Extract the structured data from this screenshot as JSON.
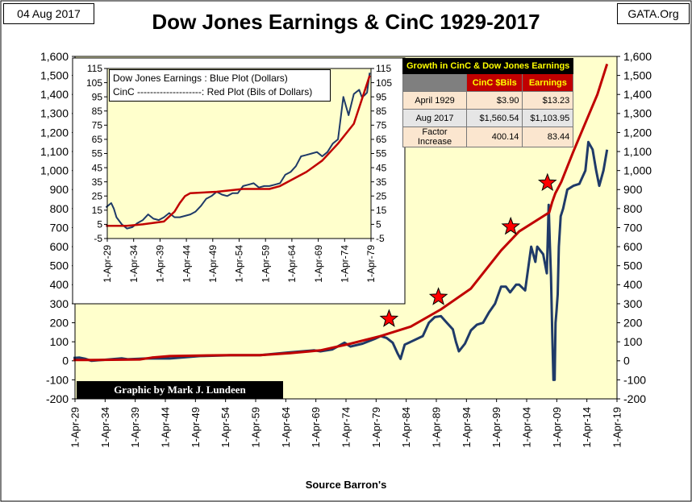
{
  "date_label": "04 Aug 2017",
  "site_label": "GATA.Org",
  "title": "Dow Jones Earnings & CinC 1929-2017",
  "credit": "Graphic by Mark J. Lundeen",
  "source": "Source Barron's",
  "colors": {
    "plot_bg": "#ffffcc",
    "earnings": "#1f3a68",
    "cinc": "#c00000",
    "star": "#ff0000"
  },
  "table": {
    "title": "Growth in CinC & Dow Jones Earnings",
    "col1": "CinC $Bils",
    "col2": "Earnings",
    "rows": [
      {
        "label": "April 1929",
        "cinc": "$3.90",
        "earnings": "$13.23"
      },
      {
        "label": "Aug 2017",
        "cinc": "$1,560.54",
        "earnings": "$1,103.95"
      },
      {
        "label": "Factor Increase",
        "cinc": "400.14",
        "earnings": "83.44"
      }
    ]
  },
  "inset_legend": {
    "line1": "Dow Jones Earnings : Blue Plot (Dollars)",
    "line2": "CinC --------------------: Red Plot (Bils of Dollars)"
  },
  "chart_data": [
    {
      "type": "line",
      "title": "Dow Jones Earnings & CinC 1929-2017",
      "xlabel": "Source Barron's",
      "x_ticks": [
        "1-Apr-29",
        "1-Apr-34",
        "1-Apr-39",
        "1-Apr-44",
        "1-Apr-49",
        "1-Apr-54",
        "1-Apr-59",
        "1-Apr-64",
        "1-Apr-69",
        "1-Apr-74",
        "1-Apr-79",
        "1-Apr-84",
        "1-Apr-89",
        "1-Apr-94",
        "1-Apr-99",
        "1-Apr-04",
        "1-Apr-09",
        "1-Apr-14",
        "1-Apr-19"
      ],
      "xlim": [
        1929.25,
        2019.25
      ],
      "ylim": [
        -200,
        1600
      ],
      "y_ticks": [
        "-200",
        "-100",
        "0",
        "100",
        "200",
        "300",
        "400",
        "500",
        "600",
        "700",
        "800",
        "900",
        "1,000",
        "1,100",
        "1,200",
        "1,300",
        "1,400",
        "1,500",
        "1,600"
      ],
      "grid": false,
      "series": [
        {
          "name": "Dow Jones Earnings",
          "x": [
            1929,
            1930,
            1931,
            1932,
            1933,
            1934,
            1937,
            1938,
            1941,
            1945,
            1950,
            1955,
            1960,
            1965,
            1969,
            1970,
            1972,
            1974,
            1975,
            1977,
            1979,
            1980,
            1981,
            1982,
            1982.8,
            1983.3,
            1984,
            1985,
            1987,
            1988,
            1989,
            1990,
            1991,
            1992,
            1992.5,
            1993,
            1994,
            1995,
            1996,
            1997,
            1998,
            1999,
            2000,
            2000.8,
            2001.5,
            2002.5,
            2003,
            2004,
            2005,
            2005.7,
            2006,
            2007,
            2007.6,
            2007.9,
            2008.1,
            2008.3,
            2008.5,
            2008.7,
            2008.9,
            2009.05,
            2009.2,
            2009.4,
            2009.6,
            2009.9,
            2010.3,
            2011,
            2012,
            2013,
            2014,
            2014.5,
            2015.2,
            2015.8,
            2016.3,
            2017,
            2017.6
          ],
          "y": [
            15,
            17,
            10,
            0,
            3,
            5,
            13,
            8,
            12,
            12,
            25,
            29,
            30,
            45,
            55,
            50,
            60,
            95,
            75,
            90,
            115,
            130,
            120,
            95,
            40,
            10,
            85,
            100,
            130,
            200,
            230,
            235,
            200,
            165,
            100,
            50,
            90,
            160,
            190,
            200,
            255,
            300,
            390,
            390,
            360,
            400,
            400,
            370,
            600,
            520,
            600,
            560,
            460,
            820,
            620,
            440,
            150,
            -100,
            -100,
            200,
            260,
            350,
            600,
            760,
            800,
            900,
            920,
            930,
            1000,
            1150,
            1110,
            1000,
            920,
            1000,
            1110
          ]
        },
        {
          "name": "CinC",
          "x": [
            1929,
            1932,
            1940,
            1942,
            1945,
            1950,
            1955,
            1960,
            1965,
            1970,
            1975,
            1980,
            1985,
            1990,
            1995,
            2000,
            2003,
            2008,
            2008.5,
            2009,
            2010,
            2012,
            2014,
            2016,
            2017.6
          ],
          "y": [
            4,
            4,
            7,
            17,
            25,
            28,
            30,
            30,
            40,
            55,
            90,
            130,
            180,
            270,
            380,
            580,
            680,
            780,
            835,
            880,
            940,
            1100,
            1250,
            1400,
            1560
          ]
        }
      ]
    },
    {
      "type": "line",
      "x_ticks": [
        "1-Apr-29",
        "1-Apr-34",
        "1-Apr-39",
        "1-Apr-44",
        "1-Apr-49",
        "1-Apr-54",
        "1-Apr-59",
        "1-Apr-64",
        "1-Apr-69",
        "1-Apr-74",
        "1-Apr-79"
      ],
      "xlim": [
        1929.25,
        1979.25
      ],
      "ylim": [
        -5,
        115
      ],
      "y_ticks": [
        "-5",
        "5",
        "15",
        "25",
        "35",
        "45",
        "55",
        "65",
        "75",
        "85",
        "95",
        "105",
        "115"
      ],
      "series": [
        {
          "name": "Dow Jones Earnings",
          "x": [
            1929,
            1930,
            1930.5,
            1931,
            1932,
            1933,
            1934,
            1935,
            1936,
            1937,
            1938,
            1939,
            1940,
            1941,
            1942,
            1943,
            1944,
            1945,
            1946,
            1947,
            1948,
            1949,
            1950,
            1951,
            1952,
            1953,
            1954,
            1955,
            1956,
            1957,
            1958,
            1959,
            1960,
            1961,
            1962,
            1963,
            1964,
            1965,
            1966,
            1967,
            1968,
            1969,
            1970,
            1971,
            1972,
            1973,
            1974,
            1975,
            1976,
            1977,
            1977.5,
            1978,
            1978.5,
            1979
          ],
          "y": [
            17,
            20,
            16,
            10,
            5,
            2,
            3,
            6,
            8,
            12,
            9,
            8,
            10,
            13,
            10,
            10,
            11,
            12,
            14,
            18,
            23,
            25,
            28,
            26,
            25,
            27,
            27,
            32,
            33,
            34,
            31,
            32,
            32,
            33,
            34,
            40,
            42,
            46,
            53,
            54,
            55,
            56,
            53,
            56,
            62,
            65,
            95,
            82,
            97,
            100,
            95,
            96,
            98,
            112
          ]
        },
        {
          "name": "CinC",
          "x": [
            1929,
            1933,
            1936,
            1940,
            1942,
            1943,
            1944,
            1945,
            1950,
            1955,
            1960,
            1962,
            1965,
            1967,
            1970,
            1973,
            1976,
            1979
          ],
          "y": [
            4,
            4,
            5,
            7,
            14,
            20,
            25,
            27,
            28,
            30,
            30,
            32,
            38,
            42,
            50,
            62,
            76,
            110
          ]
        }
      ]
    }
  ]
}
